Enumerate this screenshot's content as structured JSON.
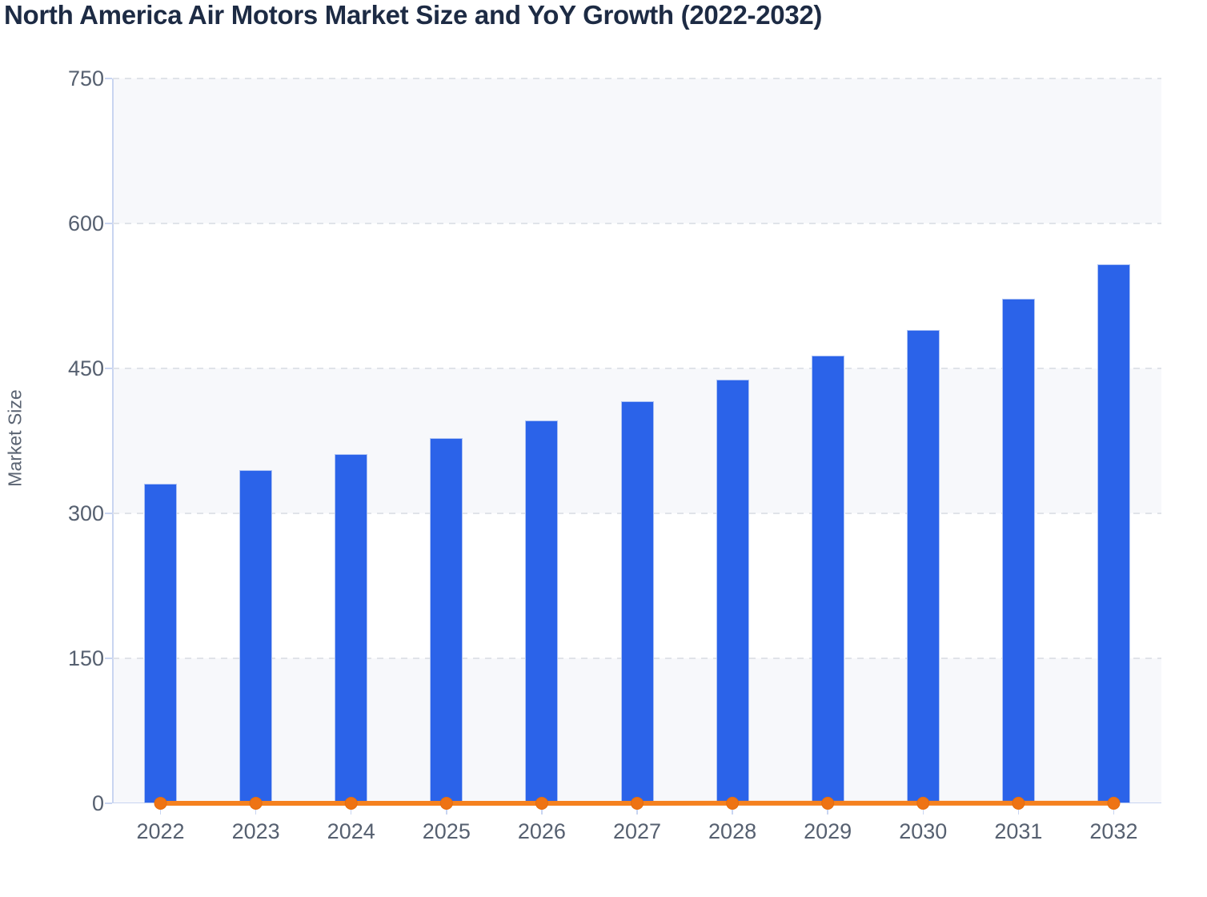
{
  "chart_data": {
    "type": "combo-bar-line",
    "title": "North America Air Motors Market Size and YoY Growth (2022-2032)",
    "ylabel": "Market Size",
    "categories": [
      "2022",
      "2023",
      "2024",
      "2025",
      "2026",
      "2027",
      "2028",
      "2029",
      "2030",
      "2031",
      "2032"
    ],
    "series": [
      {
        "name": "Market Size",
        "type": "bar",
        "color": "#2b63e9",
        "border_color": "#aec3f4",
        "values": [
          331,
          345,
          361,
          378,
          396,
          416,
          438,
          463,
          490,
          522,
          558
        ]
      },
      {
        "name": "YoY Growth",
        "type": "line",
        "color": "#f5811f",
        "marker_color": "#ee7314",
        "marker_edge_color": "#e66d0c",
        "values": [
          0.04,
          0.042,
          0.046,
          0.047,
          0.048,
          0.051,
          0.053,
          0.057,
          0.058,
          0.065,
          0.069
        ]
      }
    ],
    "ylim": [
      0,
      750
    ],
    "yticks": [
      0,
      150,
      300,
      450,
      600,
      750
    ],
    "grid": "horizontal-dashed",
    "plot_bands": "alternating",
    "legend_position": "none"
  },
  "style": {
    "background": "#ffffff",
    "title_color": "#1d2b44",
    "axis_title_color": "#5a6372",
    "tick_label_color": "#566070",
    "grid_color": "#e0e3e9",
    "axis_line_color": "#c9d5f1",
    "band_color": "#f7f8fb"
  }
}
